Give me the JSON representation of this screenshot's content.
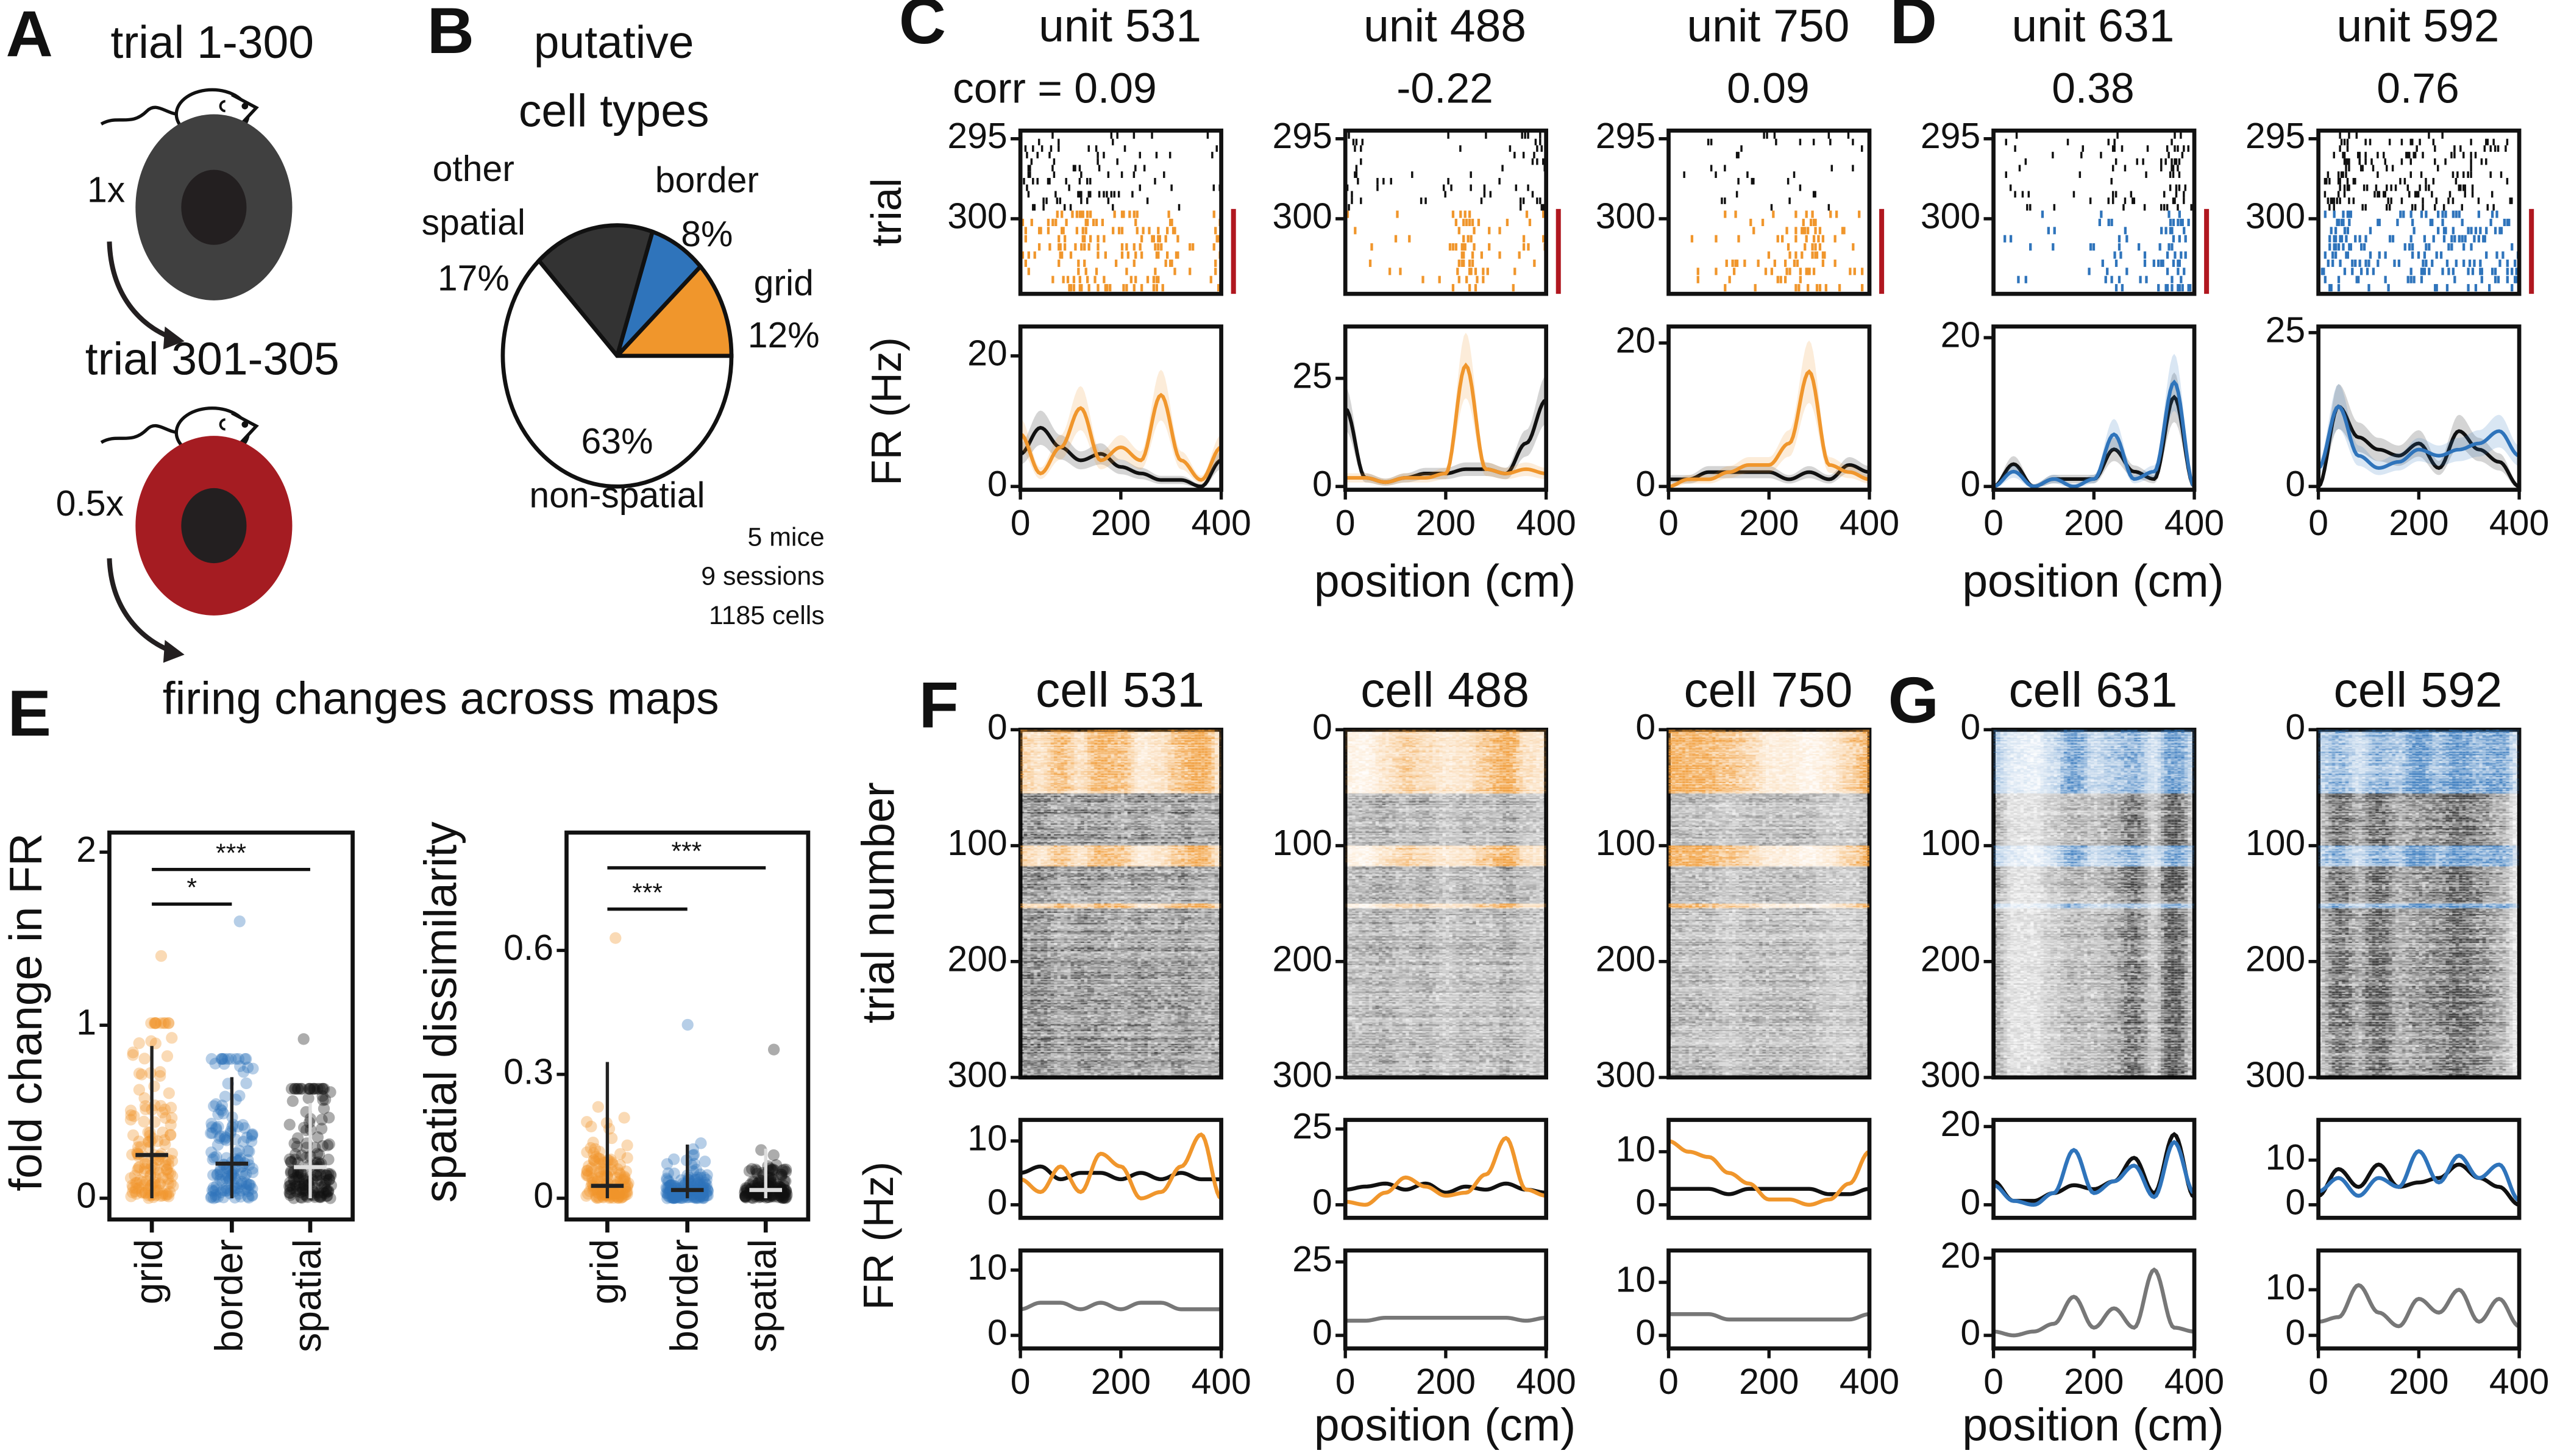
{
  "labels": {
    "A": "A",
    "B": "B",
    "C": "C",
    "D": "D",
    "E": "E",
    "F": "F",
    "G": "G"
  },
  "colors": {
    "grid": "#f0962c",
    "border": "#2f74bb",
    "spatial": "#111111",
    "gain_bar": "#b0171f",
    "disc_normal": "#404040",
    "disc_gain": "#a51c22",
    "disc_center": "#231f20",
    "other_spatial": "#333333",
    "non_spatial": "#ffffff",
    "gray_trace": "#777777"
  },
  "panel_a": {
    "top_title": "trial 1-300",
    "top_gain": "1x",
    "bottom_title": "trial 301-305",
    "bottom_gain": "0.5x"
  },
  "panel_b": {
    "title_line1": "putative",
    "title_line2": "cell types",
    "footer": [
      "5 mice",
      "9 sessions",
      "1185 cells"
    ]
  },
  "axis_labels": {
    "trial": "trial",
    "fr": "FR (Hz)",
    "position": "position (cm)",
    "trial_number": "trial number",
    "fr_f": "FR (Hz)",
    "fold_change": "fold change in FR",
    "dissimilarity": "spatial dissimilarity"
  },
  "chart_data": {
    "pie": {
      "type": "pie",
      "title": "putative cell types",
      "slices": [
        {
          "name": "grid",
          "lines": [
            "grid",
            "12%"
          ],
          "value": 12
        },
        {
          "name": "border",
          "lines": [
            "border",
            "8%"
          ],
          "value": 8
        },
        {
          "name": "other spatial",
          "lines": [
            "other",
            "spatial",
            "17%"
          ],
          "value": 17
        },
        {
          "name": "non-spatial",
          "lines": [
            "63%",
            "non-spatial"
          ],
          "value": 63
        }
      ]
    },
    "x_positions_cm": [
      0,
      40,
      80,
      120,
      160,
      200,
      240,
      280,
      320,
      360,
      400
    ],
    "xticks": [
      "0",
      "200",
      "400"
    ],
    "unit_panels": [
      {
        "title": "unit 531",
        "corr": "corr = 0.09",
        "group": "grid",
        "raster_yticks": [
          "295",
          "300"
        ],
        "fr_ytick": "20",
        "fr_tick_value": 20,
        "ylim": [
          0,
          24.5
        ],
        "baseline": [
          5,
          9,
          6,
          4,
          5,
          3,
          2,
          1,
          1,
          0,
          4
        ],
        "gain": [
          8,
          2,
          6,
          12,
          4,
          6,
          4,
          14,
          4,
          1,
          6
        ]
      },
      {
        "title": "unit 488",
        "corr": "-0.22",
        "group": "grid",
        "raster_yticks": [
          "295",
          "300"
        ],
        "fr_ytick": "25",
        "fr_tick_value": 25,
        "ylim": [
          0,
          37
        ],
        "baseline": [
          18,
          2,
          1,
          2,
          3,
          3,
          4,
          4,
          3,
          10,
          20
        ],
        "gain": [
          2,
          2,
          1,
          2,
          2,
          3,
          28,
          4,
          3,
          4,
          3
        ]
      },
      {
        "title": "unit 750",
        "corr": "0.09",
        "group": "grid",
        "raster_yticks": [
          "295",
          "300"
        ],
        "fr_ytick": "20",
        "fr_tick_value": 20,
        "ylim": [
          0,
          22.3
        ],
        "baseline": [
          1,
          1,
          2,
          2,
          2,
          2,
          1,
          2,
          1,
          3,
          2
        ],
        "gain": [
          0,
          1,
          1,
          2,
          3,
          3,
          6,
          16,
          3,
          2,
          1
        ]
      },
      {
        "title": "unit 631",
        "corr": "0.38",
        "group": "border",
        "raster_yticks": [
          "295",
          "300"
        ],
        "fr_ytick": "20",
        "fr_tick_value": 20,
        "ylim": [
          0,
          21.5
        ],
        "baseline": [
          0,
          3,
          0,
          1,
          1,
          1,
          5,
          2,
          1,
          12,
          0
        ],
        "gain": [
          0,
          2,
          0,
          1,
          0,
          1,
          7,
          1,
          2,
          14,
          0
        ]
      },
      {
        "title": "unit 592",
        "corr": "0.76",
        "group": "border",
        "raster_yticks": [
          "295",
          "300"
        ],
        "fr_ytick": "25",
        "fr_tick_value": 25,
        "ylim": [
          0,
          26
        ],
        "baseline": [
          0,
          13,
          8,
          6,
          5,
          7,
          3,
          9,
          6,
          4,
          0
        ],
        "gain": [
          3,
          13,
          5,
          3,
          4,
          6,
          5,
          6,
          7,
          9,
          5
        ]
      }
    ],
    "cell_panels": [
      {
        "title": "cell 531",
        "group": "grid",
        "heat_yticks": [
          "0",
          "100",
          "200",
          "300"
        ],
        "gain_trial_ranges": [
          [
            0,
            55
          ],
          [
            100,
            118
          ],
          [
            150,
            154
          ]
        ],
        "upper": {
          "ytick": "10",
          "tick_value": 10,
          "ylim": [
            0,
            13.3
          ],
          "black": [
            5,
            6,
            4,
            5,
            5,
            4,
            5,
            4,
            5,
            4,
            4
          ],
          "gain": [
            4,
            2,
            6,
            2,
            8,
            6,
            1,
            2,
            6,
            11,
            1
          ]
        },
        "lower": {
          "ytick": "10",
          "tick_value": 10,
          "ylim": [
            0,
            13
          ],
          "gray": [
            4,
            5,
            5,
            4,
            5,
            4,
            5,
            5,
            4,
            4,
            4
          ]
        }
      },
      {
        "title": "cell 488",
        "group": "grid",
        "heat_yticks": [
          "0",
          "100",
          "200",
          "300"
        ],
        "gain_trial_ranges": [
          [
            0,
            55
          ],
          [
            100,
            118
          ],
          [
            150,
            154
          ]
        ],
        "upper": {
          "ytick": "25",
          "tick_value": 25,
          "ylim": [
            0,
            28
          ],
          "black": [
            5,
            6,
            7,
            5,
            7,
            4,
            6,
            5,
            7,
            5,
            4
          ],
          "gain": [
            1,
            0,
            4,
            9,
            6,
            3,
            4,
            10,
            22,
            5,
            3
          ]
        },
        "lower": {
          "ytick": "25",
          "tick_value": 25,
          "ylim": [
            0,
            28.9
          ],
          "gray": [
            5,
            5,
            6,
            6,
            6,
            6,
            6,
            6,
            6,
            5,
            6
          ]
        }
      },
      {
        "title": "cell 750",
        "group": "grid",
        "heat_yticks": [
          "0",
          "100",
          "200",
          "300"
        ],
        "gain_trial_ranges": [
          [
            0,
            55
          ],
          [
            100,
            118
          ],
          [
            150,
            154
          ]
        ],
        "upper": {
          "ytick": "10",
          "tick_value": 10,
          "ylim": [
            0,
            16
          ],
          "black": [
            3,
            3,
            3,
            2,
            3,
            3,
            3,
            3,
            2,
            2,
            3
          ],
          "gain": [
            12,
            10,
            9,
            6,
            4,
            1,
            1,
            0,
            1,
            4,
            10
          ]
        },
        "lower": {
          "ytick": "10",
          "tick_value": 10,
          "ylim": [
            0,
            16
          ],
          "gray": [
            4,
            4,
            4,
            3,
            3,
            3,
            3,
            3,
            3,
            3,
            4
          ]
        }
      },
      {
        "title": "cell 631",
        "group": "border",
        "heat_yticks": [
          "0",
          "100",
          "200",
          "300"
        ],
        "gain_trial_ranges": [
          [
            0,
            55
          ],
          [
            100,
            118
          ],
          [
            150,
            154
          ]
        ],
        "upper": {
          "ytick": "20",
          "tick_value": 20,
          "ylim": [
            0,
            21.7
          ],
          "black": [
            6,
            1,
            1,
            3,
            5,
            4,
            6,
            12,
            3,
            18,
            2
          ],
          "gain": [
            5,
            1,
            0,
            3,
            14,
            3,
            6,
            10,
            2,
            16,
            3
          ]
        },
        "lower": {
          "ytick": "20",
          "tick_value": 20,
          "ylim": [
            0,
            22
          ],
          "gray": [
            1,
            0,
            1,
            3,
            10,
            2,
            7,
            2,
            17,
            2,
            1
          ]
        }
      },
      {
        "title": "cell 592",
        "group": "border",
        "heat_yticks": [
          "0",
          "100",
          "200",
          "300"
        ],
        "gain_trial_ranges": [
          [
            0,
            55
          ],
          [
            100,
            118
          ],
          [
            150,
            154
          ]
        ],
        "upper": {
          "ytick": "10",
          "tick_value": 10,
          "ylim": [
            0,
            19
          ],
          "black": [
            2,
            8,
            4,
            9,
            4,
            5,
            6,
            9,
            6,
            4,
            0
          ],
          "gain": [
            3,
            6,
            2,
            6,
            4,
            12,
            5,
            11,
            6,
            9,
            1
          ]
        },
        "lower": {
          "ytick": "10",
          "tick_value": 10,
          "ylim": [
            0,
            18.6
          ],
          "gray": [
            3,
            4,
            11,
            5,
            2,
            8,
            5,
            10,
            3,
            8,
            2
          ]
        }
      }
    ],
    "panel_e": {
      "title": "firing changes across maps",
      "categories": [
        "grid",
        "border",
        "spatial"
      ],
      "plots": [
        {
          "type": "scatter",
          "ylabel": "fold change in FR",
          "yticks": [
            "0",
            "1",
            "2"
          ],
          "ytick_values": [
            0,
            1,
            2
          ],
          "ylim": [
            -0.1,
            2.1
          ],
          "medians": [
            0.25,
            0.2,
            0.18
          ],
          "whiskers": [
            [
              0,
              0.88
            ],
            [
              0,
              0.7
            ],
            [
              0,
              0.55
            ]
          ],
          "max_values": [
            1.4,
            1.6,
            0.92
          ],
          "significance": [
            {
              "pair": [
                "grid",
                "spatial"
              ],
              "label": "***",
              "y": 1.9
            },
            {
              "pair": [
                "grid",
                "border"
              ],
              "label": "*",
              "y": 1.7
            }
          ]
        },
        {
          "type": "scatter",
          "ylabel": "spatial dissimilarity",
          "yticks": [
            "0",
            "0.3",
            "0.6"
          ],
          "ytick_values": [
            0,
            0.3,
            0.6
          ],
          "ylim": [
            -0.03,
            0.9
          ],
          "medians": [
            0.03,
            0.02,
            0.02
          ],
          "whiskers": [
            [
              0,
              0.33
            ],
            [
              0,
              0.13
            ],
            [
              0,
              0.12
            ]
          ],
          "max_values": [
            0.63,
            0.42,
            0.36
          ],
          "significance": [
            {
              "pair": [
                "grid",
                "spatial"
              ],
              "label": "***",
              "y": 0.8
            },
            {
              "pair": [
                "grid",
                "border"
              ],
              "label": "***",
              "y": 0.7
            }
          ]
        }
      ]
    }
  }
}
